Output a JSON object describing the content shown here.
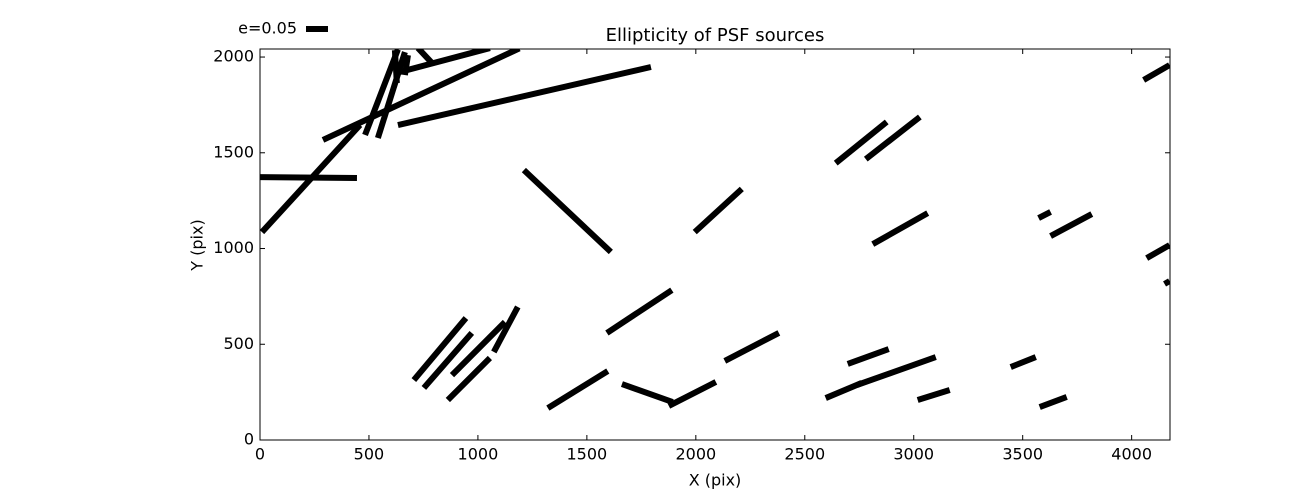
{
  "chart_data": {
    "type": "segments",
    "title": "Ellipticity of PSF sources",
    "x_label": "X (pix)",
    "y_label": "Y (pix)",
    "legend_label": "e=0.05",
    "color": "#000000",
    "xlim": [
      0,
      4176
    ],
    "ylim": [
      0,
      2042
    ],
    "xticks": [
      0,
      500,
      1000,
      1500,
      2000,
      2500,
      3000,
      3500,
      4000
    ],
    "yticks": [
      0,
      500,
      1000,
      1500,
      2000
    ],
    "segments": [
      {
        "x": [
          9,
          459
        ],
        "y": [
          1086,
          1645
        ]
      },
      {
        "x": [
          0,
          445
        ],
        "y": [
          1373,
          1368
        ]
      },
      {
        "x": [
          289,
          1190
        ],
        "y": [
          1567,
          2045
        ]
      },
      {
        "x": [
          633,
          1794
        ],
        "y": [
          1645,
          1948
        ]
      },
      {
        "x": [
          482,
          633
        ],
        "y": [
          1593,
          2040
        ]
      },
      {
        "x": [
          541,
          665
        ],
        "y": [
          1577,
          2026
        ]
      },
      {
        "x": [
          628,
          619
        ],
        "y": [
          1864,
          2036
        ]
      },
      {
        "x": [
          665,
          679
        ],
        "y": [
          1906,
          2010
        ]
      },
      {
        "x": [
          642,
          1055
        ],
        "y": [
          1922,
          2047
        ]
      },
      {
        "x": [
          725,
          789
        ],
        "y": [
          2047,
          1969
        ]
      },
      {
        "x": [
          1211,
          1610
        ],
        "y": [
          1410,
          982
        ]
      },
      {
        "x": [
          1995,
          2211
        ],
        "y": [
          1086,
          1311
        ]
      },
      {
        "x": [
          2642,
          2876
        ],
        "y": [
          1446,
          1661
        ]
      },
      {
        "x": [
          2780,
          3028
        ],
        "y": [
          1467,
          1687
        ]
      },
      {
        "x": [
          2812,
          3064
        ],
        "y": [
          1023,
          1185
        ]
      },
      {
        "x": [
          3573,
          3628
        ],
        "y": [
          1159,
          1191
        ]
      },
      {
        "x": [
          3628,
          3817
        ],
        "y": [
          1065,
          1180
        ]
      },
      {
        "x": [
          4055,
          4174
        ],
        "y": [
          1880,
          1958
        ]
      },
      {
        "x": [
          4069,
          4174
        ],
        "y": [
          950,
          1018
        ]
      },
      {
        "x": [
          4151,
          4174
        ],
        "y": [
          815,
          830
        ]
      },
      {
        "x": [
          706,
          945
        ],
        "y": [
          313,
          637
        ]
      },
      {
        "x": [
          752,
          972
        ],
        "y": [
          272,
          559
        ]
      },
      {
        "x": [
          881,
          1124
        ],
        "y": [
          339,
          616
        ]
      },
      {
        "x": [
          862,
          1055
        ],
        "y": [
          209,
          428
        ]
      },
      {
        "x": [
          1073,
          1183
        ],
        "y": [
          460,
          695
        ]
      },
      {
        "x": [
          1592,
          1890
        ],
        "y": [
          559,
          783
        ]
      },
      {
        "x": [
          1321,
          1596
        ],
        "y": [
          167,
          360
        ]
      },
      {
        "x": [
          1661,
          1894
        ],
        "y": [
          292,
          198
        ]
      },
      {
        "x": [
          1876,
          2092
        ],
        "y": [
          178,
          303
        ]
      },
      {
        "x": [
          2133,
          2381
        ],
        "y": [
          413,
          559
        ]
      },
      {
        "x": [
          2697,
          2885
        ],
        "y": [
          397,
          475
        ]
      },
      {
        "x": [
          2596,
          2761
        ],
        "y": [
          219,
          298
        ]
      },
      {
        "x": [
          2739,
          3101
        ],
        "y": [
          287,
          433
        ]
      },
      {
        "x": [
          3018,
          3165
        ],
        "y": [
          209,
          261
        ]
      },
      {
        "x": [
          3445,
          3560
        ],
        "y": [
          381,
          433
        ]
      },
      {
        "x": [
          3578,
          3702
        ],
        "y": [
          172,
          225
        ]
      }
    ]
  }
}
